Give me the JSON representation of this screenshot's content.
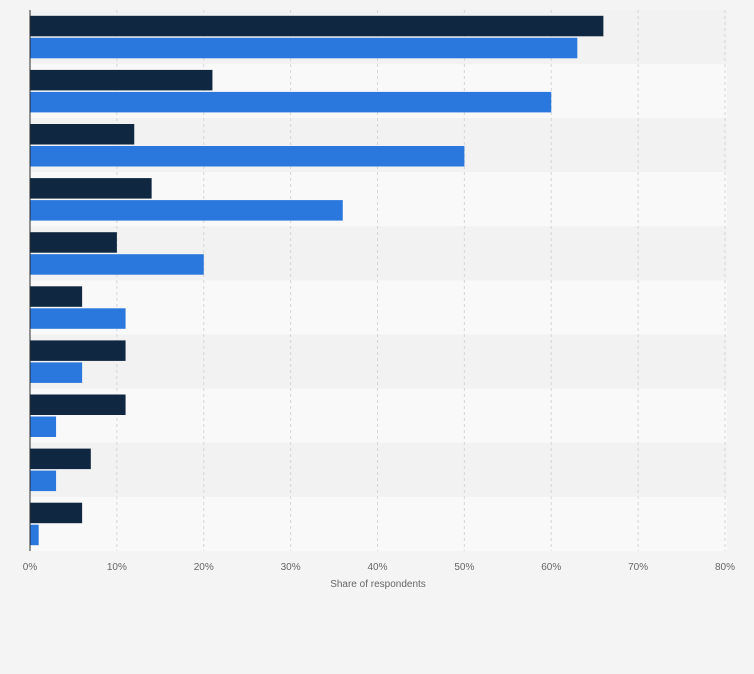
{
  "chart_data": {
    "type": "bar",
    "orientation": "horizontal",
    "categories": [
      "",
      "",
      "",
      "",
      "",
      "",
      "",
      "",
      "",
      ""
    ],
    "series": [
      {
        "name": "",
        "color": "#0f2740",
        "values": [
          66,
          21,
          12,
          14,
          10,
          6,
          11,
          11,
          7,
          6
        ]
      },
      {
        "name": "",
        "color": "#2a77dd",
        "values": [
          63,
          60,
          50,
          36,
          20,
          11,
          6,
          3,
          3,
          1
        ]
      }
    ],
    "xlim": [
      0,
      80
    ],
    "xticks": [
      0,
      10,
      20,
      30,
      40,
      50,
      60,
      70,
      80
    ],
    "tick_labels": [
      "0%",
      "10%",
      "20%",
      "30%",
      "40%",
      "50%",
      "60%",
      "70%",
      "80%"
    ],
    "xlabel": "Share of respondents",
    "ylabel": "",
    "title": "",
    "grid": true,
    "legend": "none",
    "row_band_colors": [
      "#f2f2f2",
      "#f9f9f9"
    ]
  }
}
